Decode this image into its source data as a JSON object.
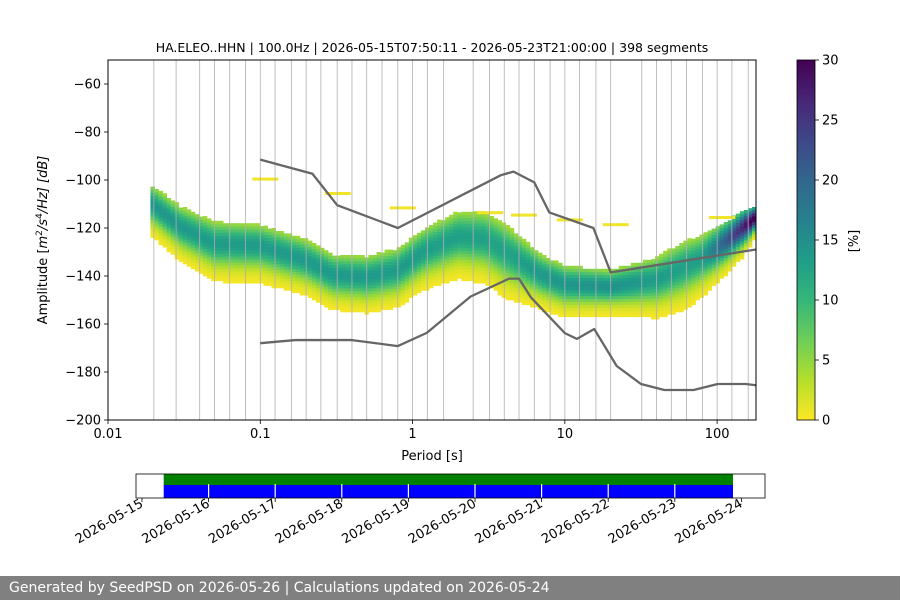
{
  "chart_data": {
    "type": "heatmap",
    "title": "HA.ELEO..HHN | 100.0Hz | 2026-05-15T07:50:11 - 2026-05-23T21:00:00 | 398 segments",
    "xlabel": "Period [s]",
    "ylabel_parts": {
      "pre": "Amplitude [",
      "m": "m",
      "e2": "2",
      "s": "/s",
      "e4": "4",
      "hz": "/Hz] [dB]"
    },
    "x_scale": "log",
    "xlim": [
      0.01,
      180
    ],
    "ylim": [
      -200,
      -50
    ],
    "x_ticks": [
      {
        "value": 0.01,
        "label": "0.01"
      },
      {
        "value": 0.1,
        "label": "0.1"
      },
      {
        "value": 1,
        "label": "1"
      },
      {
        "value": 10,
        "label": "10"
      },
      {
        "value": 100,
        "label": "100"
      }
    ],
    "y_ticks": [
      {
        "value": -60,
        "label": "−60"
      },
      {
        "value": -80,
        "label": "−80"
      },
      {
        "value": -100,
        "label": "−100"
      },
      {
        "value": -120,
        "label": "−120"
      },
      {
        "value": -140,
        "label": "−140"
      },
      {
        "value": -160,
        "label": "−160"
      },
      {
        "value": -180,
        "label": "−180"
      },
      {
        "value": -200,
        "label": "−200"
      }
    ],
    "grid_x_periods": [
      0.02,
      0.028,
      0.04,
      0.05,
      0.063,
      0.08,
      0.1,
      0.125,
      0.16,
      0.2,
      0.25,
      0.32,
      0.4,
      0.5,
      0.63,
      0.8,
      1.0,
      1.25,
      1.6,
      2.5,
      3.2,
      4,
      5,
      6.3,
      8,
      10,
      12.5,
      16,
      20,
      32,
      40,
      50,
      63,
      80,
      100,
      125,
      160
    ],
    "colorbar": {
      "label": "[%]",
      "range": [
        0,
        30
      ],
      "ticks": [
        {
          "value": 0,
          "label": "0"
        },
        {
          "value": 5,
          "label": "5"
        },
        {
          "value": 10,
          "label": "10"
        },
        {
          "value": 15,
          "label": "15"
        },
        {
          "value": 20,
          "label": "20"
        },
        {
          "value": 25,
          "label": "25"
        },
        {
          "value": 30,
          "label": "30"
        }
      ],
      "colors": [
        "#fde725",
        "#b5de2b",
        "#6ece58",
        "#35b779",
        "#1f9e89",
        "#26828e",
        "#31688e",
        "#3e4989",
        "#482878",
        "#440154"
      ]
    },
    "density": {
      "period_range": [
        0.019,
        180
      ],
      "center_db": [
        [
          0.019,
          -110
        ],
        [
          0.03,
          -120
        ],
        [
          0.05,
          -127
        ],
        [
          0.1,
          -128
        ],
        [
          0.2,
          -134
        ],
        [
          0.3,
          -140
        ],
        [
          0.5,
          -141
        ],
        [
          0.8,
          -138
        ],
        [
          1.2,
          -130
        ],
        [
          2,
          -124
        ],
        [
          3,
          -125
        ],
        [
          4.5,
          -132
        ],
        [
          7,
          -140
        ],
        [
          10,
          -144
        ],
        [
          20,
          -145
        ],
        [
          40,
          -142
        ],
        [
          80,
          -133
        ],
        [
          120,
          -125
        ],
        [
          180,
          -116
        ]
      ],
      "width_db": [
        [
          0.019,
          20
        ],
        [
          0.05,
          24
        ],
        [
          0.3,
          22
        ],
        [
          1,
          24
        ],
        [
          4,
          30
        ],
        [
          7,
          22
        ],
        [
          20,
          18
        ],
        [
          60,
          28
        ],
        [
          150,
          18
        ],
        [
          180,
          12
        ]
      ],
      "upper_outliers": [
        [
          0.1,
          -100
        ],
        [
          0.3,
          -106
        ],
        [
          0.8,
          -112
        ],
        [
          3,
          -114
        ],
        [
          5,
          -115
        ],
        [
          10,
          -117
        ],
        [
          20,
          -119
        ],
        [
          100,
          -116
        ]
      ]
    },
    "noise_model_high": {
      "x": [
        0.1,
        0.22,
        0.32,
        0.8,
        3.8,
        4.6,
        6.3,
        7.9,
        15.4,
        20,
        354.8
      ],
      "y": [
        -91.5,
        -97.4,
        -110.5,
        -120.0,
        -98.0,
        -96.5,
        -101.0,
        -113.5,
        -120.0,
        -138.5,
        -126.0
      ]
    },
    "noise_model_low": {
      "x": [
        0.1,
        0.17,
        0.4,
        0.8,
        1.24,
        2.4,
        4.3,
        5,
        6,
        10,
        12,
        15.6,
        21.9,
        31.6,
        45,
        70,
        101,
        154,
        328
      ],
      "y": [
        -168.0,
        -166.7,
        -166.7,
        -169.2,
        -163.7,
        -148.6,
        -141.1,
        -141.1,
        -149.0,
        -163.8,
        -166.2,
        -162.1,
        -177.5,
        -185.0,
        -187.5,
        -187.5,
        -185.0,
        -185.0,
        -187.5
      ]
    },
    "timeline": {
      "date_ticks": [
        "2026-05-15",
        "2026-05-16",
        "2026-05-17",
        "2026-05-18",
        "2026-05-19",
        "2026-05-20",
        "2026-05-21",
        "2026-05-22",
        "2026-05-23",
        "2026-05-24"
      ],
      "data_range": [
        "2026-05-15T07:50:11",
        "2026-05-23T21:00:00"
      ],
      "segment_boundaries": [
        "2026-05-16",
        "2026-05-17",
        "2026-05-18",
        "2026-05-19",
        "2026-05-20",
        "2026-05-21",
        "2026-05-22",
        "2026-05-23"
      ],
      "available_color": "#008000",
      "used_color": "#0000ff"
    }
  },
  "footer": {
    "text": "Generated by SeedPSD on 2026-05-26 | Calculations updated on 2026-05-24"
  }
}
